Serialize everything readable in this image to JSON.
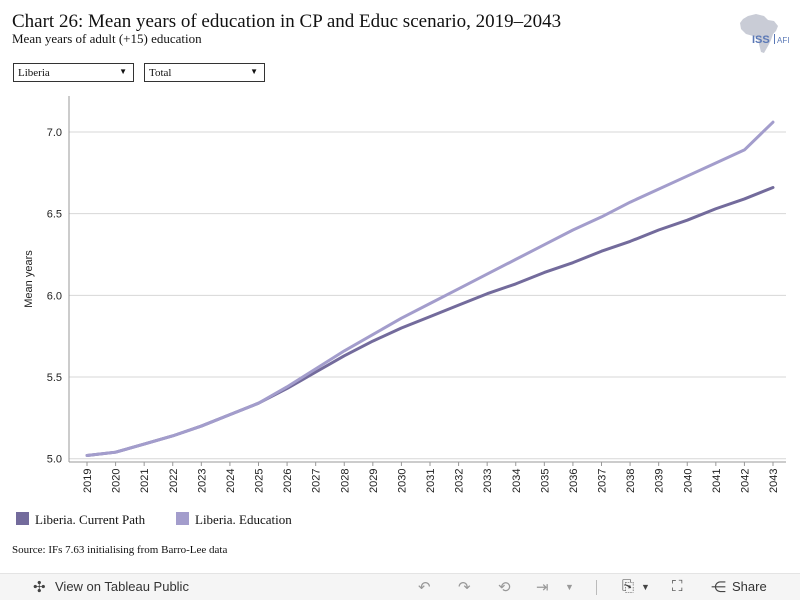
{
  "header": {
    "title": "Chart 26: Mean years of education in CP and Educ scenario, 2019–2043",
    "subtitle": "Mean years of adult (+15) education",
    "logo_text": "ISS",
    "logo_suffix": "AFI"
  },
  "filters": {
    "country": "Liberia",
    "measure": "Total"
  },
  "chart_data": {
    "type": "line",
    "title": "",
    "xlabel": "",
    "ylabel": "Mean years",
    "x": [
      "2019",
      "2020",
      "2021",
      "2022",
      "2023",
      "2024",
      "2025",
      "2026",
      "2027",
      "2028",
      "2029",
      "2030",
      "2031",
      "2032",
      "2033",
      "2034",
      "2035",
      "2036",
      "2037",
      "2038",
      "2039",
      "2040",
      "2041",
      "2042",
      "2043"
    ],
    "ylim": [
      4.98,
      7.22
    ],
    "yticks": [
      5.0,
      5.5,
      6.0,
      6.5,
      7.0
    ],
    "ytick_labels": [
      "5.0",
      "5.5",
      "6.0",
      "6.5",
      "7.0"
    ],
    "grid": true,
    "legend_position": "bottom-left",
    "series": [
      {
        "name": "Liberia. Current Path",
        "color": "#736b9c",
        "values": [
          5.02,
          5.04,
          5.09,
          5.14,
          5.2,
          5.27,
          5.34,
          5.43,
          5.53,
          5.63,
          5.72,
          5.8,
          5.87,
          5.94,
          6.01,
          6.07,
          6.14,
          6.2,
          6.27,
          6.33,
          6.4,
          6.46,
          6.53,
          6.59,
          6.66
        ]
      },
      {
        "name": "Liberia. Education",
        "color": "#a39dcc",
        "values": [
          5.02,
          5.04,
          5.09,
          5.14,
          5.2,
          5.27,
          5.34,
          5.44,
          5.55,
          5.66,
          5.76,
          5.86,
          5.95,
          6.04,
          6.13,
          6.22,
          6.31,
          6.4,
          6.48,
          6.57,
          6.65,
          6.73,
          6.81,
          6.89,
          7.06
        ]
      }
    ]
  },
  "source": "Source: IFs 7.63 initialising from Barro-Lee data",
  "toolbar": {
    "view_label": "View on Tableau Public",
    "share_label": "Share"
  }
}
